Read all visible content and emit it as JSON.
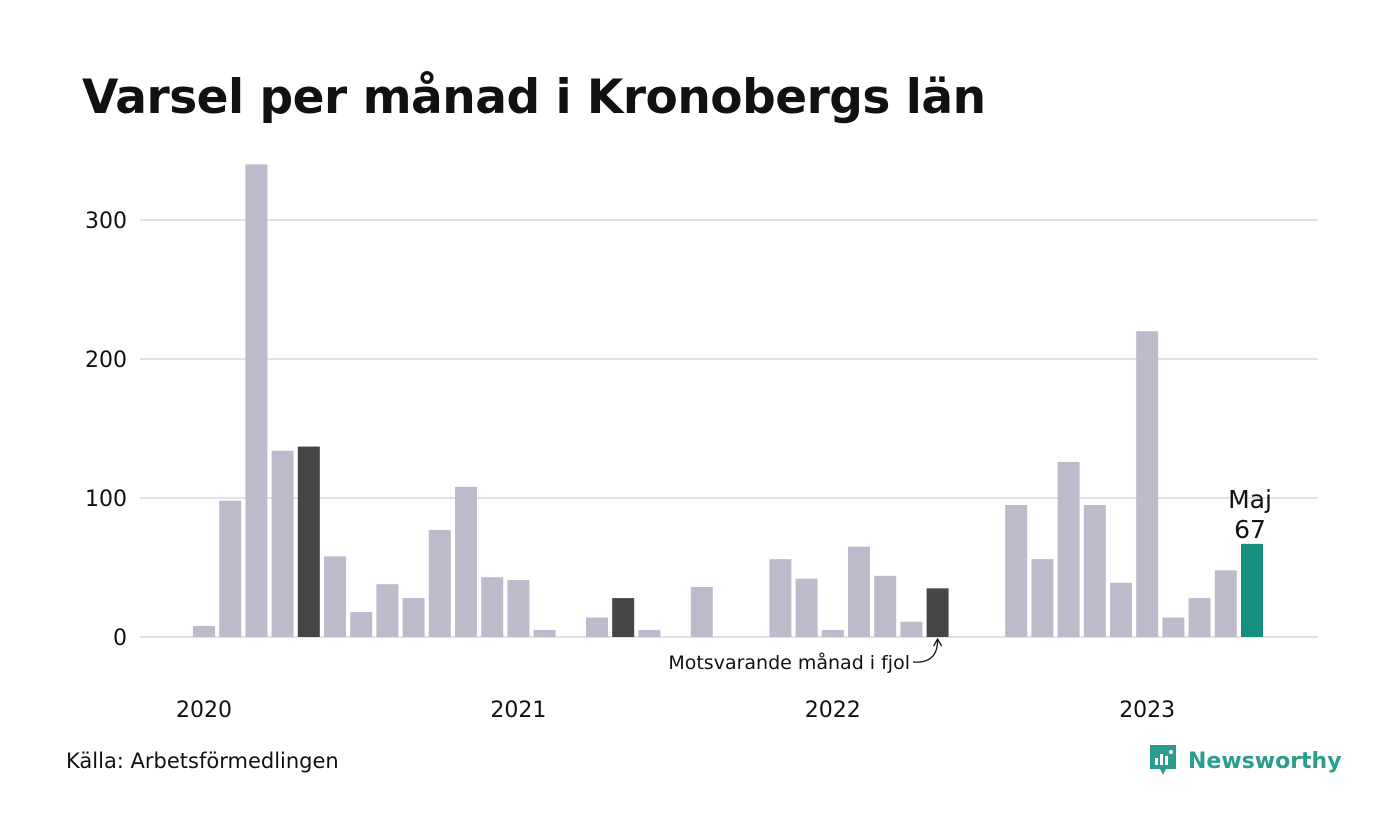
{
  "title": "Varsel per månad i Kronobergs län",
  "source": "Källa: Arbetsförmedlingen",
  "brand": {
    "name": "Newsworthy",
    "icon": "newsworthy-logo-icon",
    "color": "#17917f"
  },
  "colors": {
    "default": "#bdbbcb",
    "previous_year": "#454545",
    "highlight": "#16917f",
    "grid": "#e2e2e2"
  },
  "chart_data": {
    "type": "bar",
    "title": "Varsel per månad i Kronobergs län",
    "xlabel": "",
    "ylabel": "",
    "ylim": [
      0,
      340
    ],
    "yticks": [
      0,
      100,
      200,
      300
    ],
    "grid": true,
    "x_year_labels": [
      "2020",
      "2021",
      "2022",
      "2023"
    ],
    "months": [
      "2020-01",
      "2020-02",
      "2020-03",
      "2020-04",
      "2020-05",
      "2020-06",
      "2020-07",
      "2020-08",
      "2020-09",
      "2020-10",
      "2020-11",
      "2020-12",
      "2021-01",
      "2021-02",
      "2021-03",
      "2021-04",
      "2021-05",
      "2021-06",
      "2021-07",
      "2021-08",
      "2021-09",
      "2021-10",
      "2021-11",
      "2021-12",
      "2022-01",
      "2022-02",
      "2022-03",
      "2022-04",
      "2022-05",
      "2022-06",
      "2022-07",
      "2022-08",
      "2022-09",
      "2022-10",
      "2022-11",
      "2022-12",
      "2023-01",
      "2023-02",
      "2023-03",
      "2023-04",
      "2023-05"
    ],
    "values": [
      8,
      98,
      340,
      134,
      137,
      58,
      18,
      38,
      28,
      77,
      108,
      43,
      41,
      5,
      0,
      14,
      28,
      5,
      0,
      36,
      0,
      0,
      56,
      42,
      5,
      65,
      44,
      11,
      35,
      0,
      0,
      95,
      56,
      126,
      95,
      39,
      220,
      14,
      28,
      48,
      67
    ],
    "previous_year_indices": [
      4,
      16,
      28
    ],
    "highlight_index": 40,
    "highlight_label": {
      "month": "Maj",
      "value": "67"
    },
    "annotation": "Motsvarande månad i fjol"
  }
}
